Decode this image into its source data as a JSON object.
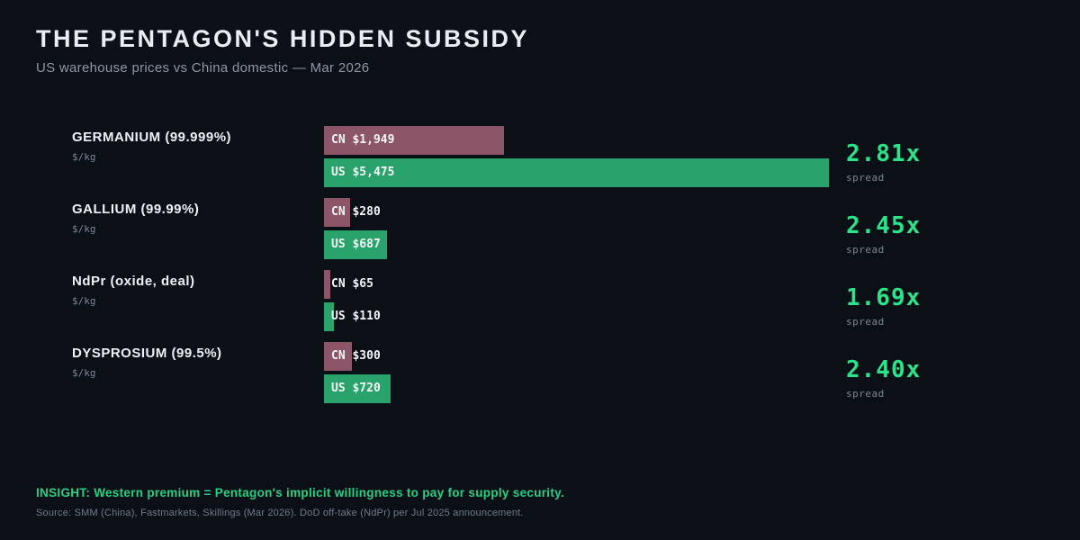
{
  "header": {
    "title": "THE PENTAGON'S HIDDEN SUBSIDY",
    "subtitle": "US warehouse prices vs China domestic — Mar 2026"
  },
  "footer": {
    "insight": "INSIGHT: Western premium = Pentagon's implicit willingness to pay for supply security.",
    "source": "Source: SMM (China), Fastmarkets, Skillings (Mar 2026). DoD off-take (NdPr) per Jul 2025 announcement."
  },
  "colors": {
    "background": "#0b0f16",
    "cn_bar": "#8d5568",
    "us_bar": "#2aa26c",
    "spread_accent": "#2be389",
    "insight_green": "#27d185"
  },
  "chart_data": {
    "type": "bar",
    "orientation": "horizontal",
    "unit": "$/kg",
    "value_axis_max": 5475,
    "grid": false,
    "legend": "inline bar labels (CN = China domestic, US = US warehouse)",
    "series_names": [
      "CN",
      "US"
    ],
    "rows": [
      {
        "label": "GERMANIUM (99.999%)",
        "unit": "$/kg",
        "cn_value": 1949,
        "cn_label": "CN $1,949",
        "us_value": 5475,
        "us_label": "US $5,475",
        "spread": "2.81x",
        "spread_caption": "spread"
      },
      {
        "label": "GALLIUM (99.99%)",
        "unit": "$/kg",
        "cn_value": 280,
        "cn_label": "CN $280",
        "us_value": 687,
        "us_label": "US $687",
        "spread": "2.45x",
        "spread_caption": "spread"
      },
      {
        "label": "NdPr (oxide, deal)",
        "unit": "$/kg",
        "cn_value": 65,
        "cn_label": "CN $65",
        "us_value": 110,
        "us_label": "US $110",
        "spread": "1.69x",
        "spread_caption": "spread"
      },
      {
        "label": "DYSPROSIUM (99.5%)",
        "unit": "$/kg",
        "cn_value": 300,
        "cn_label": "CN $300",
        "us_value": 720,
        "us_label": "US $720",
        "spread": "2.40x",
        "spread_caption": "spread"
      }
    ]
  }
}
